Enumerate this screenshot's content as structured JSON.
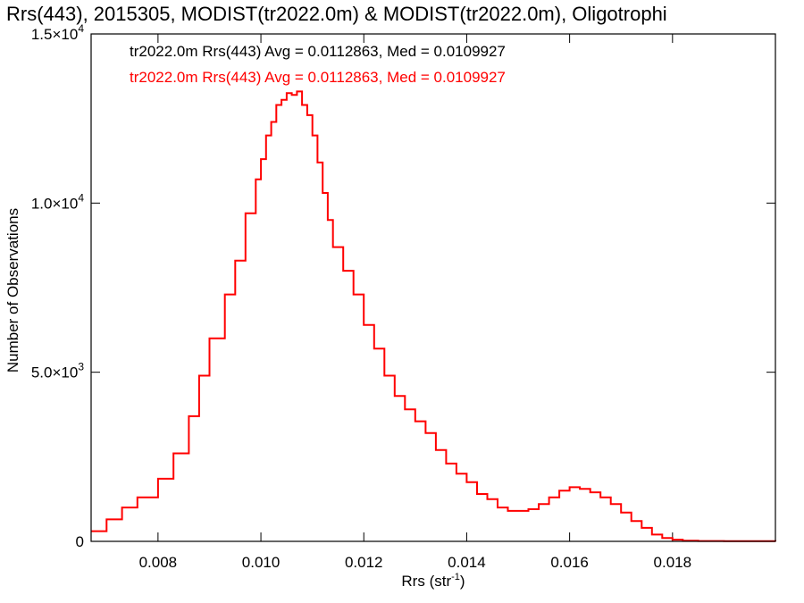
{
  "chart_data": {
    "type": "line",
    "title": "Rrs(443), 2015305, MODIST(tr2022.0m) & MODIST(tr2022.0m), Oligotrophi",
    "xlabel": "Rrs (str",
    "xlabel_sup": "-1",
    "xlabel_end": ")",
    "ylabel": "Number of Observations",
    "xlim": [
      0.0067,
      0.02
    ],
    "ylim": [
      0,
      15000
    ],
    "x_ticks": [
      {
        "value": 0.008,
        "label": "0.008"
      },
      {
        "value": 0.01,
        "label": "0.010"
      },
      {
        "value": 0.012,
        "label": "0.012"
      },
      {
        "value": 0.014,
        "label": "0.014"
      },
      {
        "value": 0.016,
        "label": "0.016"
      },
      {
        "value": 0.018,
        "label": "0.018"
      }
    ],
    "y_ticks": [
      {
        "value": 0,
        "mant": "0",
        "exp": ""
      },
      {
        "value": 5000,
        "mant": "5.0×10",
        "exp": "3"
      },
      {
        "value": 10000,
        "mant": "1.0×10",
        "exp": "4"
      },
      {
        "value": 15000,
        "mant": "1.5×10",
        "exp": "4"
      }
    ],
    "annotations": [
      {
        "text": "tr2022.0m Rrs(443) Avg = 0.0112863, Med = 0.0109927",
        "color": "#000000"
      },
      {
        "text": "tr2022.0m Rrs(443) Avg = 0.0112863, Med = 0.0109927",
        "color": "#ff0000"
      }
    ],
    "series": [
      {
        "color": "#ff0000",
        "style": "step",
        "x": [
          0.0067,
          0.007,
          0.0073,
          0.0076,
          0.008,
          0.0083,
          0.0086,
          0.0088,
          0.009,
          0.0093,
          0.0095,
          0.0097,
          0.0099,
          0.01,
          0.0101,
          0.0102,
          0.0103,
          0.0104,
          0.0105,
          0.0106,
          0.0107,
          0.0108,
          0.0109,
          0.011,
          0.0111,
          0.0112,
          0.0113,
          0.0114,
          0.0116,
          0.0118,
          0.012,
          0.0122,
          0.0124,
          0.0126,
          0.0128,
          0.013,
          0.0132,
          0.0134,
          0.0136,
          0.0138,
          0.014,
          0.0142,
          0.0144,
          0.0146,
          0.0148,
          0.015,
          0.0152,
          0.0154,
          0.0156,
          0.0158,
          0.016,
          0.0162,
          0.0164,
          0.0166,
          0.0168,
          0.017,
          0.0172,
          0.0174,
          0.0176,
          0.0178,
          0.018,
          0.0182,
          0.0185,
          0.019,
          0.02
        ],
        "y": [
          300,
          650,
          1000,
          1300,
          1850,
          2600,
          3700,
          4900,
          6000,
          7300,
          8300,
          9700,
          10700,
          11300,
          12000,
          12400,
          12900,
          13050,
          13250,
          13200,
          13300,
          12900,
          12600,
          12000,
          11200,
          10300,
          9500,
          8700,
          8000,
          7300,
          6400,
          5700,
          4900,
          4300,
          3900,
          3550,
          3200,
          2700,
          2300,
          2000,
          1750,
          1400,
          1250,
          1000,
          900,
          900,
          950,
          1100,
          1300,
          1500,
          1600,
          1550,
          1450,
          1300,
          1100,
          850,
          600,
          400,
          200,
          100,
          50,
          20,
          10,
          5,
          0
        ]
      }
    ]
  }
}
